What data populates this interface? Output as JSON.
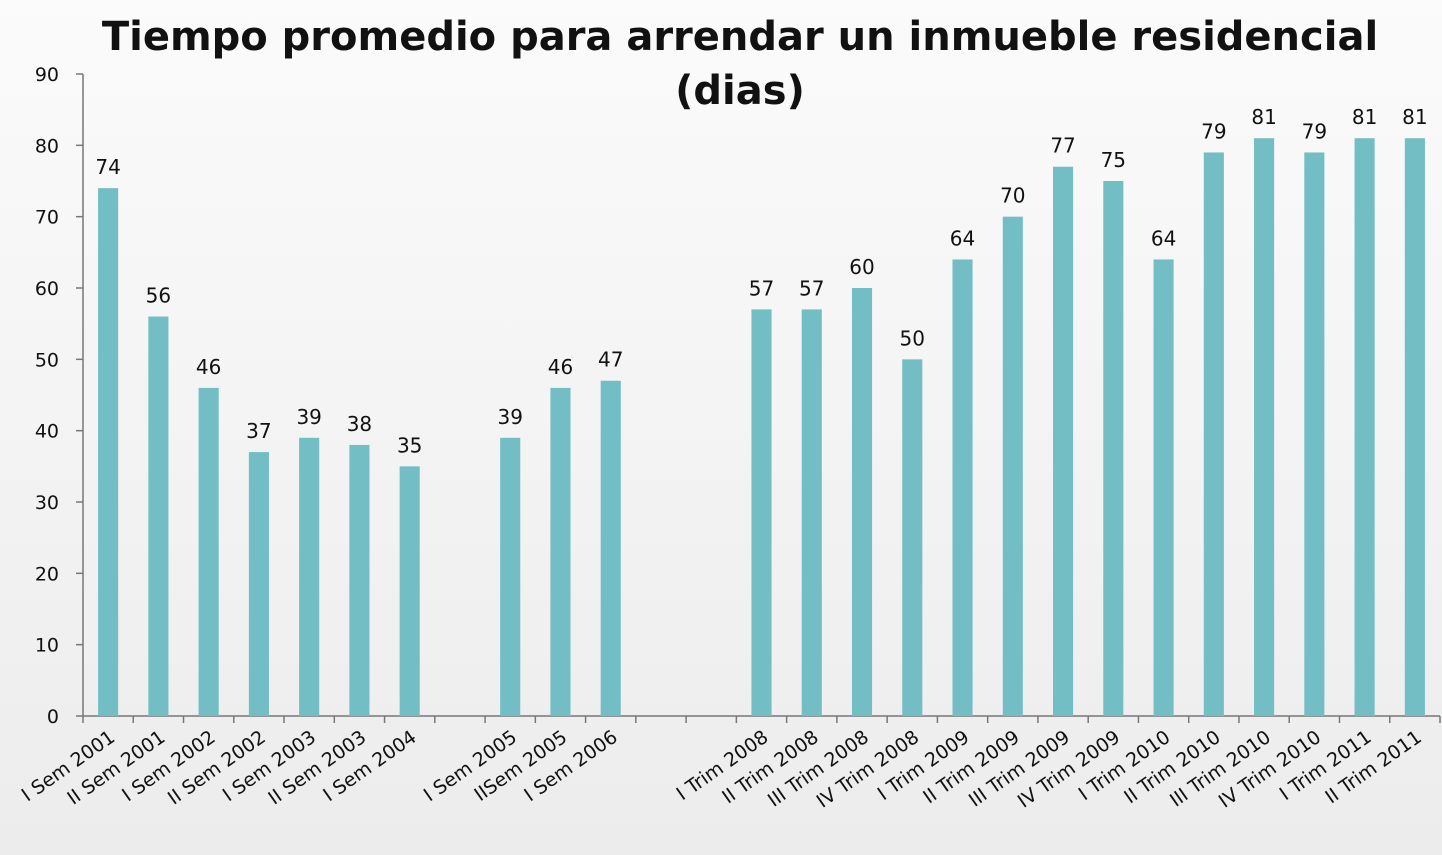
{
  "chart_data": {
    "type": "bar",
    "title": [
      "Tiempo promedio para arrendar un inmueble residencial",
      "(dias)"
    ],
    "categories": [
      "I Sem 2001",
      "II Sem 2001",
      "I Sem 2002",
      "II Sem 2002",
      "I Sem 2003",
      "II Sem 2003",
      "I Sem 2004",
      null,
      "I Sem 2005",
      "IISem 2005",
      "I Sem 2006",
      null,
      null,
      "I Trim 2008",
      "II Trim 2008",
      "III Trim 2008",
      "IV Trim 2008",
      "I Trim 2009",
      "II Trim 2009",
      "III Trim 2009",
      "IV Trim 2009",
      "I Trim 2010",
      "II Trim 2010",
      "III Trim 2010",
      "IV Trim 2010",
      "I Trim 2011",
      "II Trim 2011"
    ],
    "values": [
      74,
      56,
      46,
      37,
      39,
      38,
      35,
      null,
      39,
      46,
      47,
      null,
      null,
      57,
      57,
      60,
      50,
      64,
      70,
      77,
      75,
      64,
      79,
      81,
      79,
      81,
      81
    ],
    "color": "#73bec4",
    "ylim": [
      0,
      90
    ],
    "yticks": [
      0,
      10,
      20,
      30,
      40,
      50,
      60,
      70,
      80,
      90
    ],
    "grid": false
  }
}
